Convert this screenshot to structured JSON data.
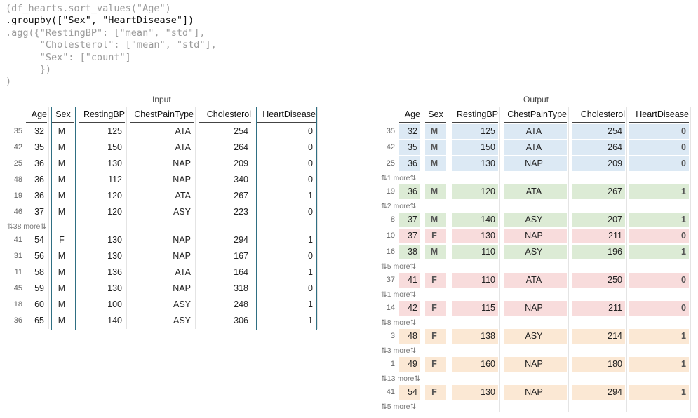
{
  "code_lines": [
    "(df_hearts.sort_values(\"Age\")",
    ".groupby([\"Sex\", \"HeartDisease\"])",
    ".agg({\"RestingBP\": [\"mean\", \"std\"],",
    "      \"Cholesterol\": [\"mean\", \"std\"],",
    "      \"Sex\": [\"count\"]",
    "      })",
    ")"
  ],
  "input": {
    "caption": "Input",
    "columns": [
      "Age",
      "Sex",
      "RestingBP",
      "ChestPainType",
      "Cholesterol",
      "HeartDisease"
    ],
    "rows": [
      {
        "type": "row",
        "index": "35",
        "cells": [
          "32",
          "M",
          "125",
          "ATA",
          "254",
          "0"
        ]
      },
      {
        "type": "row",
        "index": "42",
        "cells": [
          "35",
          "M",
          "150",
          "ATA",
          "264",
          "0"
        ]
      },
      {
        "type": "row",
        "index": "25",
        "cells": [
          "36",
          "M",
          "130",
          "NAP",
          "209",
          "0"
        ]
      },
      {
        "type": "row",
        "index": "48",
        "cells": [
          "36",
          "M",
          "112",
          "NAP",
          "340",
          "0"
        ]
      },
      {
        "type": "row",
        "index": "19",
        "cells": [
          "36",
          "M",
          "120",
          "ATA",
          "267",
          "1"
        ]
      },
      {
        "type": "row",
        "index": "46",
        "cells": [
          "37",
          "M",
          "120",
          "ASY",
          "223",
          "0"
        ]
      },
      {
        "type": "more",
        "text": "⇅38 more⇅"
      },
      {
        "type": "row",
        "index": "41",
        "cells": [
          "54",
          "F",
          "130",
          "NAP",
          "294",
          "1"
        ]
      },
      {
        "type": "row",
        "index": "31",
        "cells": [
          "56",
          "M",
          "130",
          "NAP",
          "167",
          "0"
        ]
      },
      {
        "type": "row",
        "index": "11",
        "cells": [
          "58",
          "M",
          "136",
          "ATA",
          "164",
          "1"
        ]
      },
      {
        "type": "row",
        "index": "45",
        "cells": [
          "59",
          "M",
          "130",
          "NAP",
          "318",
          "0"
        ]
      },
      {
        "type": "row",
        "index": "18",
        "cells": [
          "60",
          "M",
          "100",
          "ASY",
          "248",
          "1"
        ]
      },
      {
        "type": "row",
        "index": "36",
        "cells": [
          "65",
          "M",
          "140",
          "ASY",
          "306",
          "1"
        ]
      }
    ]
  },
  "output": {
    "caption": "Output",
    "columns": [
      "Age",
      "Sex",
      "RestingBP",
      "ChestPainType",
      "Cholesterol",
      "HeartDisease"
    ],
    "group_colors": {
      "M0": "#dce9f4",
      "M1": "#dcebd5",
      "F0": "#f8dcdc",
      "F1": "#fbe8d4"
    },
    "rows": [
      {
        "type": "row",
        "index": "35",
        "group": "M0",
        "cells": [
          "32",
          "M",
          "125",
          "ATA",
          "254",
          "0"
        ]
      },
      {
        "type": "row",
        "index": "42",
        "group": "M0",
        "cells": [
          "35",
          "M",
          "150",
          "ATA",
          "264",
          "0"
        ]
      },
      {
        "type": "row",
        "index": "25",
        "group": "M0",
        "cells": [
          "36",
          "M",
          "130",
          "NAP",
          "209",
          "0"
        ]
      },
      {
        "type": "more",
        "text": "⇅1 more⇅"
      },
      {
        "type": "row",
        "index": "19",
        "group": "M1",
        "cells": [
          "36",
          "M",
          "120",
          "ATA",
          "267",
          "1"
        ]
      },
      {
        "type": "more",
        "text": "⇅2 more⇅"
      },
      {
        "type": "row",
        "index": "8",
        "group": "M1",
        "cells": [
          "37",
          "M",
          "140",
          "ASY",
          "207",
          "1"
        ]
      },
      {
        "type": "row",
        "index": "10",
        "group": "F0",
        "cells": [
          "37",
          "F",
          "130",
          "NAP",
          "211",
          "0"
        ]
      },
      {
        "type": "row",
        "index": "16",
        "group": "M1",
        "cells": [
          "38",
          "M",
          "110",
          "ASY",
          "196",
          "1"
        ]
      },
      {
        "type": "more",
        "text": "⇅5 more⇅"
      },
      {
        "type": "row",
        "index": "37",
        "group": "F0",
        "cells": [
          "41",
          "F",
          "110",
          "ATA",
          "250",
          "0"
        ]
      },
      {
        "type": "more",
        "text": "⇅1 more⇅"
      },
      {
        "type": "row",
        "index": "14",
        "group": "F0",
        "cells": [
          "42",
          "F",
          "115",
          "NAP",
          "211",
          "0"
        ]
      },
      {
        "type": "more",
        "text": "⇅8 more⇅"
      },
      {
        "type": "row",
        "index": "3",
        "group": "F1",
        "cells": [
          "48",
          "F",
          "138",
          "ASY",
          "214",
          "1"
        ]
      },
      {
        "type": "more",
        "text": "⇅3 more⇅"
      },
      {
        "type": "row",
        "index": "1",
        "group": "F1",
        "cells": [
          "49",
          "F",
          "160",
          "NAP",
          "180",
          "1"
        ]
      },
      {
        "type": "more",
        "text": "⇅13 more⇅"
      },
      {
        "type": "row",
        "index": "41",
        "group": "F1",
        "cells": [
          "54",
          "F",
          "130",
          "NAP",
          "294",
          "1"
        ]
      },
      {
        "type": "more",
        "text": "⇅5 more⇅"
      }
    ]
  }
}
